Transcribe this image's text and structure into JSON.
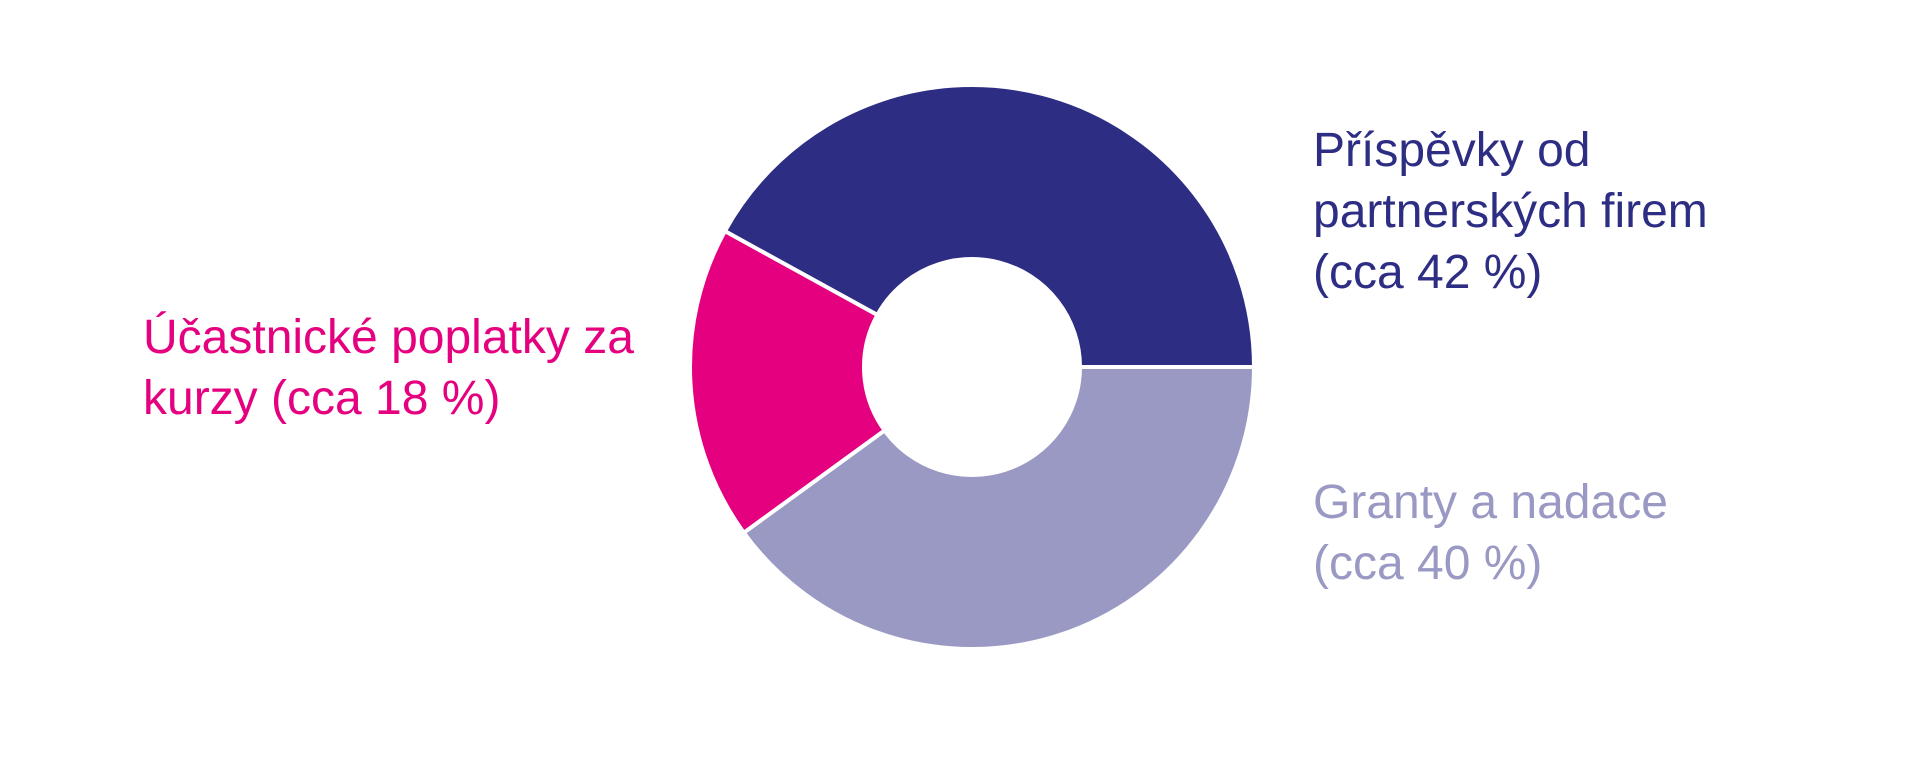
{
  "chart_data": {
    "type": "donut",
    "categories": [
      "Příspěvky od partnerských firem",
      "Účastnické poplatky za kurzy",
      "Granty a nadace"
    ],
    "values": [
      42,
      18,
      40
    ],
    "value_labels": [
      "(cca 42 %)",
      "(cca 18 %)",
      "(cca 40 %)"
    ],
    "colors": [
      "#2e2d84",
      "#e4007e",
      "#9999c4"
    ]
  }
}
